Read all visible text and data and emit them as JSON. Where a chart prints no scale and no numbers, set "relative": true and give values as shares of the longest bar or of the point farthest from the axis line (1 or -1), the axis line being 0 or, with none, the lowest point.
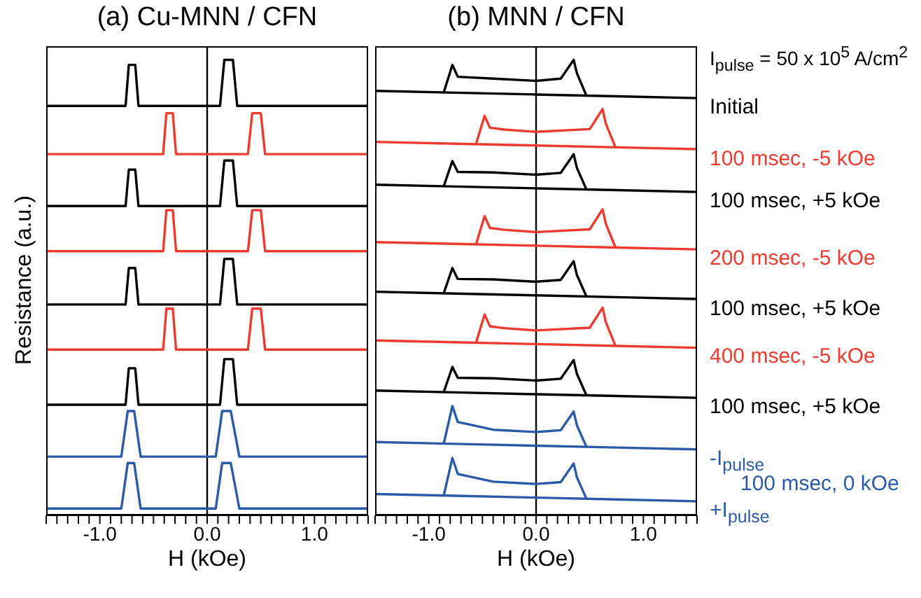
{
  "chart_data": [
    {
      "type": "line",
      "title": "(a) Cu-MNN / CFN",
      "xlabel": "H (kOe)",
      "ylabel": "Resistance (a.u.)",
      "relative": true,
      "xlim": [
        -1.5,
        1.5
      ],
      "xticks": [
        {
          "value": -1.5,
          "label": null
        },
        {
          "value": -1.4,
          "label": null
        },
        {
          "value": -1.3,
          "label": null
        },
        {
          "value": -1.2,
          "label": null
        },
        {
          "value": -1.1,
          "label": null
        },
        {
          "value": -1.0,
          "label": "-1.0"
        },
        {
          "value": -0.9,
          "label": null
        },
        {
          "value": -0.8,
          "label": null
        },
        {
          "value": -0.7,
          "label": null
        },
        {
          "value": -0.6,
          "label": null
        },
        {
          "value": -0.5,
          "label": null
        },
        {
          "value": -0.4,
          "label": null
        },
        {
          "value": -0.3,
          "label": null
        },
        {
          "value": -0.2,
          "label": null
        },
        {
          "value": -0.1,
          "label": null
        },
        {
          "value": 0,
          "label": "0.0"
        },
        {
          "value": 0.1,
          "label": null
        },
        {
          "value": 0.2,
          "label": null
        },
        {
          "value": 0.3,
          "label": null
        },
        {
          "value": 0.4,
          "label": null
        },
        {
          "value": 0.5,
          "label": null
        },
        {
          "value": 0.6,
          "label": null
        },
        {
          "value": 0.7,
          "label": null
        },
        {
          "value": 0.8,
          "label": null
        },
        {
          "value": 0.9,
          "label": null
        },
        {
          "value": 1.0,
          "label": "1.0"
        },
        {
          "value": 1.1,
          "label": null
        },
        {
          "value": 1.2,
          "label": null
        },
        {
          "value": 1.3,
          "label": null
        },
        {
          "value": 1.4,
          "label": null
        },
        {
          "value": 1.5,
          "label": null
        }
      ],
      "ref_lines": [
        {
          "axis": "x",
          "value": 0,
          "color": "#000000"
        }
      ],
      "marker": "none",
      "series": [
        {
          "color": "#000000",
          "x": [
            -1.5,
            -0.76,
            -0.73,
            -0.67,
            -0.64,
            0.12,
            0.16,
            0.24,
            0.28,
            1.5
          ],
          "values": [
            0.899,
            0.899,
            0.989,
            0.989,
            0.899,
            0.899,
            1.0,
            1.0,
            0.899,
            0.899
          ]
        },
        {
          "color": "#ee3b2f",
          "x": [
            -1.5,
            -0.41,
            -0.38,
            -0.32,
            -0.29,
            0.38,
            0.42,
            0.5,
            0.54,
            1.5
          ],
          "values": [
            0.793,
            0.793,
            0.883,
            0.883,
            0.793,
            0.793,
            0.883,
            0.883,
            0.793,
            0.793
          ]
        },
        {
          "color": "#000000",
          "x": [
            -1.5,
            -0.76,
            -0.73,
            -0.67,
            -0.64,
            0.12,
            0.16,
            0.24,
            0.28,
            1.5
          ],
          "values": [
            0.679,
            0.679,
            0.759,
            0.759,
            0.679,
            0.679,
            0.779,
            0.779,
            0.679,
            0.679
          ]
        },
        {
          "color": "#ee3b2f",
          "x": [
            -1.5,
            -0.41,
            -0.38,
            -0.32,
            -0.29,
            0.38,
            0.42,
            0.5,
            0.54,
            1.5
          ],
          "values": [
            0.58,
            0.58,
            0.67,
            0.67,
            0.58,
            0.58,
            0.67,
            0.67,
            0.58,
            0.58
          ]
        },
        {
          "color": "#000000",
          "x": [
            -1.5,
            -0.76,
            -0.73,
            -0.67,
            -0.64,
            0.12,
            0.16,
            0.24,
            0.28,
            1.5
          ],
          "values": [
            0.463,
            0.463,
            0.543,
            0.543,
            0.463,
            0.463,
            0.563,
            0.563,
            0.463,
            0.463
          ]
        },
        {
          "color": "#ee3b2f",
          "x": [
            -1.5,
            -0.41,
            -0.38,
            -0.32,
            -0.29,
            0.38,
            0.42,
            0.5,
            0.54,
            1.5
          ],
          "values": [
            0.364,
            0.364,
            0.454,
            0.454,
            0.364,
            0.364,
            0.454,
            0.454,
            0.364,
            0.364
          ]
        },
        {
          "color": "#000000",
          "x": [
            -1.5,
            -0.76,
            -0.73,
            -0.67,
            -0.64,
            0.12,
            0.16,
            0.24,
            0.28,
            1.5
          ],
          "values": [
            0.243,
            0.243,
            0.323,
            0.323,
            0.243,
            0.243,
            0.343,
            0.343,
            0.243,
            0.243
          ]
        },
        {
          "color": "#2b5aa8",
          "x": [
            -1.5,
            -0.8,
            -0.74,
            -0.68,
            -0.62,
            0.08,
            0.14,
            0.22,
            0.3,
            1.5
          ],
          "values": [
            0.129,
            0.129,
            0.229,
            0.229,
            0.129,
            0.129,
            0.229,
            0.229,
            0.129,
            0.129
          ]
        },
        {
          "color": "#2b5aa8",
          "x": [
            -1.5,
            -0.8,
            -0.74,
            -0.68,
            -0.62,
            0.08,
            0.14,
            0.22,
            0.3,
            1.5
          ],
          "values": [
            0.015,
            0.015,
            0.115,
            0.115,
            0.015,
            0.015,
            0.115,
            0.115,
            0.015,
            0.015
          ]
        }
      ]
    },
    {
      "type": "line",
      "title": "(b) MNN / CFN",
      "xlabel": "H (kOe)",
      "relative": true,
      "xlim": [
        -1.5,
        1.5
      ],
      "xticks": [
        {
          "value": -1.5,
          "label": null
        },
        {
          "value": -1.4,
          "label": null
        },
        {
          "value": -1.3,
          "label": null
        },
        {
          "value": -1.2,
          "label": null
        },
        {
          "value": -1.1,
          "label": null
        },
        {
          "value": -1.0,
          "label": "-1.0"
        },
        {
          "value": -0.9,
          "label": null
        },
        {
          "value": -0.8,
          "label": null
        },
        {
          "value": -0.7,
          "label": null
        },
        {
          "value": -0.6,
          "label": null
        },
        {
          "value": -0.5,
          "label": null
        },
        {
          "value": -0.4,
          "label": null
        },
        {
          "value": -0.3,
          "label": null
        },
        {
          "value": -0.2,
          "label": null
        },
        {
          "value": -0.1,
          "label": null
        },
        {
          "value": 0,
          "label": "0.0"
        },
        {
          "value": 0.1,
          "label": null
        },
        {
          "value": 0.2,
          "label": null
        },
        {
          "value": 0.3,
          "label": null
        },
        {
          "value": 0.4,
          "label": null
        },
        {
          "value": 0.5,
          "label": null
        },
        {
          "value": 0.6,
          "label": null
        },
        {
          "value": 0.7,
          "label": null
        },
        {
          "value": 0.8,
          "label": null
        },
        {
          "value": 0.9,
          "label": null
        },
        {
          "value": 1.0,
          "label": "1.0"
        },
        {
          "value": 1.1,
          "label": null
        },
        {
          "value": 1.2,
          "label": null
        },
        {
          "value": 1.3,
          "label": null
        },
        {
          "value": 1.4,
          "label": null
        },
        {
          "value": 1.5,
          "label": null
        }
      ],
      "ref_lines": [
        {
          "axis": "x",
          "value": 0,
          "color": "#000000"
        }
      ],
      "marker": "none",
      "annotations": [
        "I$_{pulse}$ = 50 x 10$^{5}$ A/cm$^{2}$",
        "100 msec, 0 kOe"
      ],
      "series": [
        {
          "name": "Initial",
          "color": "#000000",
          "x": [
            -1.5,
            -0.75,
            0,
            0.75,
            1.5
          ],
          "values": [
            0.932,
            0.928,
            0.924,
            0.92,
            0.916
          ]
        },
        {
          "color": "#000000",
          "x": [
            -0.86,
            -0.78,
            -0.73,
            -0.4,
            0,
            0.23,
            0.35,
            0.38,
            0.47
          ],
          "values": [
            0.929,
            0.989,
            0.963,
            0.959,
            0.954,
            0.959,
            1.0,
            0.971,
            0.921
          ]
        },
        {
          "name": "100 msec, -5 kOe",
          "color": "#ee3b2f",
          "x": [
            -1.5,
            -0.75,
            0,
            0.75,
            1.5
          ],
          "values": [
            0.82,
            0.816,
            0.812,
            0.808,
            0.804
          ]
        },
        {
          "color": "#ee3b2f",
          "x": [
            -0.56,
            -0.48,
            -0.43,
            -0.3,
            0,
            0.5,
            0.62,
            0.65,
            0.74
          ],
          "values": [
            0.815,
            0.877,
            0.851,
            0.847,
            0.842,
            0.848,
            0.892,
            0.86,
            0.808
          ]
        },
        {
          "name": "100 msec, +5 kOe",
          "color": "#000000",
          "x": [
            -1.5,
            -0.75,
            0,
            0.75,
            1.5
          ],
          "values": [
            0.726,
            0.722,
            0.718,
            0.714,
            0.71
          ]
        },
        {
          "color": "#000000",
          "x": [
            -0.86,
            -0.78,
            -0.73,
            -0.4,
            0,
            0.23,
            0.35,
            0.38,
            0.47
          ],
          "values": [
            0.723,
            0.778,
            0.754,
            0.753,
            0.748,
            0.752,
            0.793,
            0.763,
            0.715
          ]
        },
        {
          "name": "200 msec, -5 kOe",
          "color": "#ee3b2f",
          "x": [
            -1.5,
            -0.75,
            0,
            0.75,
            1.5
          ],
          "values": [
            0.6,
            0.596,
            0.592,
            0.588,
            0.584
          ]
        },
        {
          "color": "#ee3b2f",
          "x": [
            -0.56,
            -0.48,
            -0.43,
            -0.3,
            0,
            0.5,
            0.62,
            0.65,
            0.74
          ],
          "values": [
            0.595,
            0.657,
            0.631,
            0.627,
            0.622,
            0.628,
            0.672,
            0.64,
            0.588
          ]
        },
        {
          "name": "100 msec, +5 kOe",
          "color": "#000000",
          "x": [
            -1.5,
            -0.75,
            0,
            0.75,
            1.5
          ],
          "values": [
            0.491,
            0.487,
            0.483,
            0.479,
            0.475
          ]
        },
        {
          "color": "#000000",
          "x": [
            -0.86,
            -0.78,
            -0.73,
            -0.4,
            0,
            0.23,
            0.35,
            0.38,
            0.47
          ],
          "values": [
            0.488,
            0.543,
            0.519,
            0.518,
            0.513,
            0.517,
            0.558,
            0.528,
            0.48
          ]
        },
        {
          "name": "400 msec, -5 kOe",
          "color": "#ee3b2f",
          "x": [
            -1.5,
            -0.75,
            0,
            0.75,
            1.5
          ],
          "values": [
            0.384,
            0.38,
            0.376,
            0.372,
            0.368
          ]
        },
        {
          "color": "#ee3b2f",
          "x": [
            -0.56,
            -0.48,
            -0.43,
            -0.3,
            0,
            0.5,
            0.62,
            0.65,
            0.74
          ],
          "values": [
            0.379,
            0.441,
            0.415,
            0.411,
            0.406,
            0.412,
            0.456,
            0.424,
            0.372
          ]
        },
        {
          "name": "100 msec, +5 kOe",
          "color": "#000000",
          "x": [
            -1.5,
            -0.75,
            0,
            0.75,
            1.5
          ],
          "values": [
            0.274,
            0.27,
            0.266,
            0.262,
            0.258
          ]
        },
        {
          "color": "#000000",
          "x": [
            -0.86,
            -0.78,
            -0.73,
            -0.4,
            0,
            0.23,
            0.35,
            0.38,
            0.47
          ],
          "values": [
            0.271,
            0.326,
            0.302,
            0.301,
            0.296,
            0.3,
            0.341,
            0.311,
            0.263
          ]
        },
        {
          "name": "-I$_{pulse}$",
          "color": "#2b5aa8",
          "x": [
            -1.5,
            -0.75,
            0,
            0.75,
            1.5
          ],
          "values": [
            0.161,
            0.157,
            0.153,
            0.149,
            0.145
          ]
        },
        {
          "color": "#2b5aa8",
          "x": [
            -0.86,
            -0.78,
            -0.73,
            -0.4,
            0,
            0.23,
            0.35,
            0.38,
            0.47
          ],
          "values": [
            0.158,
            0.24,
            0.205,
            0.188,
            0.183,
            0.187,
            0.228,
            0.198,
            0.15
          ]
        },
        {
          "name": "+I$_{pulse}$",
          "color": "#2b5aa8",
          "x": [
            -1.5,
            -0.75,
            0,
            0.75,
            1.5
          ],
          "values": [
            0.047,
            0.043,
            0.039,
            0.035,
            0.031
          ]
        },
        {
          "color": "#2b5aa8",
          "x": [
            -0.86,
            -0.78,
            -0.73,
            -0.4,
            0,
            0.23,
            0.35,
            0.38,
            0.47
          ],
          "values": [
            0.044,
            0.126,
            0.091,
            0.074,
            0.069,
            0.073,
            0.114,
            0.084,
            0.036
          ]
        }
      ]
    }
  ]
}
